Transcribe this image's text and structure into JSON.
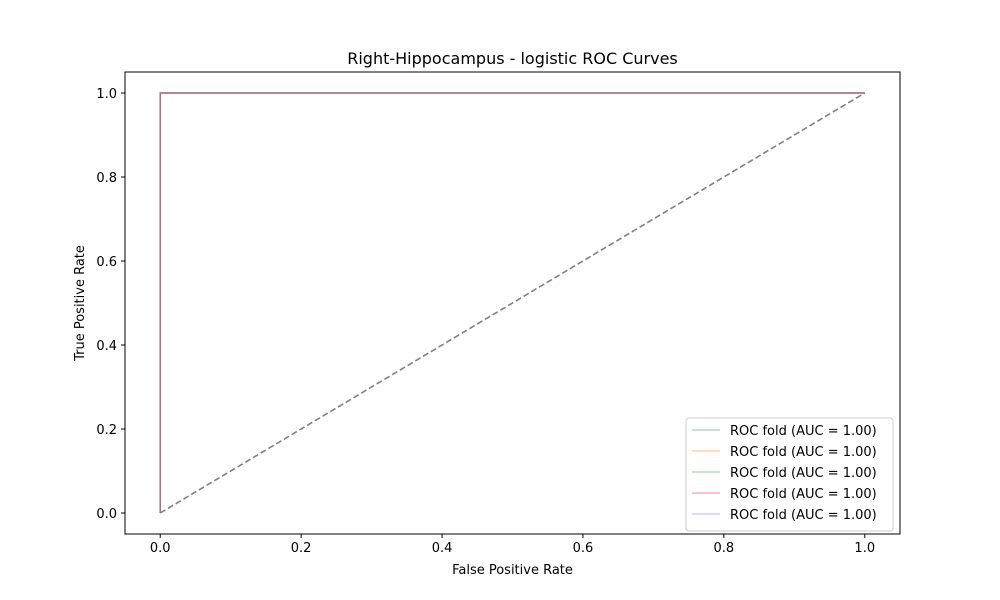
{
  "chart_data": {
    "type": "line",
    "title": "Right-Hippocampus - logistic ROC Curves",
    "xlabel": "False Positive Rate",
    "ylabel": "True Positive Rate",
    "xlim": [
      -0.05,
      1.05
    ],
    "ylim": [
      -0.05,
      1.05
    ],
    "xticks": [
      0.0,
      0.2,
      0.4,
      0.6,
      0.8,
      1.0
    ],
    "yticks": [
      0.0,
      0.2,
      0.4,
      0.6,
      0.8,
      1.0
    ],
    "xtick_labels": [
      "0.0",
      "0.2",
      "0.4",
      "0.6",
      "0.8",
      "1.0"
    ],
    "ytick_labels": [
      "0.0",
      "0.2",
      "0.4",
      "0.6",
      "0.8",
      "1.0"
    ],
    "grid": false,
    "legend_position": "lower-right",
    "series": [
      {
        "name": "ROC fold (AUC = 1.00)",
        "color": "#1f77b4",
        "x": [
          0,
          0,
          1
        ],
        "y": [
          0,
          1,
          1
        ]
      },
      {
        "name": "ROC fold (AUC = 1.00)",
        "color": "#ff7f0e",
        "x": [
          0,
          0,
          1
        ],
        "y": [
          0,
          1,
          1
        ]
      },
      {
        "name": "ROC fold (AUC = 1.00)",
        "color": "#2ca02c",
        "x": [
          0,
          0,
          1
        ],
        "y": [
          0,
          1,
          1
        ]
      },
      {
        "name": "ROC fold (AUC = 1.00)",
        "color": "#d62728",
        "x": [
          0,
          0,
          1
        ],
        "y": [
          0,
          1,
          1
        ]
      },
      {
        "name": "ROC fold (AUC = 1.00)",
        "color": "#9467bd",
        "x": [
          0,
          0,
          1
        ],
        "y": [
          0,
          1,
          1
        ]
      }
    ],
    "reference_line": {
      "x": [
        0,
        1
      ],
      "y": [
        0,
        1
      ],
      "color": "#808080",
      "style": "dashed"
    }
  }
}
